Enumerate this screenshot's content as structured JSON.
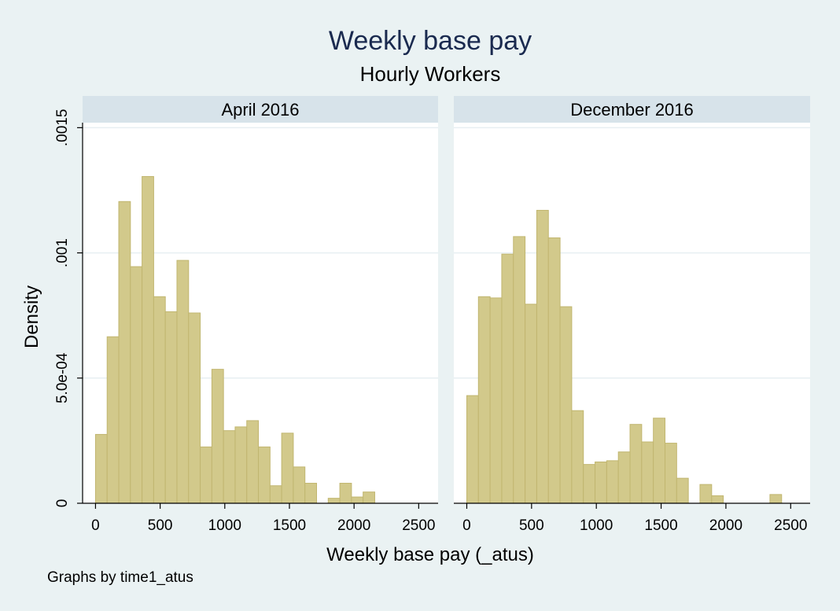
{
  "chart_data": {
    "type": "histogram",
    "title": "Weekly base pay",
    "subtitle": "Hourly Workers",
    "xlabel": "Weekly base pay (_atus)",
    "ylabel": "Density",
    "note": "Graphs by time1_atus",
    "xlim": [
      -100,
      2650
    ],
    "ylim": [
      0,
      0.00152
    ],
    "bin_width": 90,
    "x_ticks": [
      {
        "value": 0,
        "label": "0"
      },
      {
        "value": 500,
        "label": "500"
      },
      {
        "value": 1000,
        "label": "1000"
      },
      {
        "value": 1500,
        "label": "1500"
      },
      {
        "value": 2000,
        "label": "2000"
      },
      {
        "value": 2500,
        "label": "2500"
      }
    ],
    "y_ticks": [
      {
        "value": 0,
        "label": "0"
      },
      {
        "value": 0.0005,
        "label": "5.0e-04"
      },
      {
        "value": 0.001,
        "label": ".001"
      },
      {
        "value": 0.0015,
        "label": ".0015"
      }
    ],
    "panels": [
      {
        "name": "April 2016",
        "bins": [
          {
            "start": 0,
            "density": 0.000275
          },
          {
            "start": 90,
            "density": 0.000665
          },
          {
            "start": 180,
            "density": 0.001205
          },
          {
            "start": 270,
            "density": 0.000945
          },
          {
            "start": 360,
            "density": 0.001305
          },
          {
            "start": 450,
            "density": 0.000825
          },
          {
            "start": 540,
            "density": 0.000765
          },
          {
            "start": 630,
            "density": 0.00097
          },
          {
            "start": 720,
            "density": 0.00076
          },
          {
            "start": 810,
            "density": 0.000225
          },
          {
            "start": 900,
            "density": 0.000535
          },
          {
            "start": 990,
            "density": 0.00029
          },
          {
            "start": 1080,
            "density": 0.000305
          },
          {
            "start": 1170,
            "density": 0.00033
          },
          {
            "start": 1260,
            "density": 0.000225
          },
          {
            "start": 1350,
            "density": 7e-05
          },
          {
            "start": 1440,
            "density": 0.00028
          },
          {
            "start": 1530,
            "density": 0.000145
          },
          {
            "start": 1620,
            "density": 8e-05
          },
          {
            "start": 1710,
            "density": 0
          },
          {
            "start": 1800,
            "density": 2e-05
          },
          {
            "start": 1890,
            "density": 8e-05
          },
          {
            "start": 1980,
            "density": 2.5e-05
          },
          {
            "start": 2070,
            "density": 4.5e-05
          }
        ]
      },
      {
        "name": "December 2016",
        "bins": [
          {
            "start": 0,
            "density": 0.00043
          },
          {
            "start": 90,
            "density": 0.000825
          },
          {
            "start": 180,
            "density": 0.00082
          },
          {
            "start": 270,
            "density": 0.000995
          },
          {
            "start": 360,
            "density": 0.001065
          },
          {
            "start": 450,
            "density": 0.000795
          },
          {
            "start": 540,
            "density": 0.00117
          },
          {
            "start": 630,
            "density": 0.00106
          },
          {
            "start": 720,
            "density": 0.000785
          },
          {
            "start": 810,
            "density": 0.00037
          },
          {
            "start": 900,
            "density": 0.000155
          },
          {
            "start": 990,
            "density": 0.000165
          },
          {
            "start": 1080,
            "density": 0.00017
          },
          {
            "start": 1170,
            "density": 0.000205
          },
          {
            "start": 1260,
            "density": 0.000315
          },
          {
            "start": 1350,
            "density": 0.000245
          },
          {
            "start": 1440,
            "density": 0.00034
          },
          {
            "start": 1530,
            "density": 0.00024
          },
          {
            "start": 1620,
            "density": 0.0001
          },
          {
            "start": 1710,
            "density": 0
          },
          {
            "start": 1800,
            "density": 7.5e-05
          },
          {
            "start": 1890,
            "density": 3e-05
          },
          {
            "start": 1980,
            "density": 0
          },
          {
            "start": 2070,
            "density": 0
          },
          {
            "start": 2160,
            "density": 0
          },
          {
            "start": 2250,
            "density": 0
          },
          {
            "start": 2340,
            "density": 3.5e-05
          }
        ]
      }
    ]
  },
  "colors": {
    "background": "#eaf2f3",
    "plot_background": "#ffffff",
    "strip": "#d7e3ea",
    "bar_fill": "#d2c98b",
    "bar_stroke": "#c1b670",
    "grid": "#e7eff2",
    "axis": "#000000",
    "title": "#1a2a4f"
  }
}
